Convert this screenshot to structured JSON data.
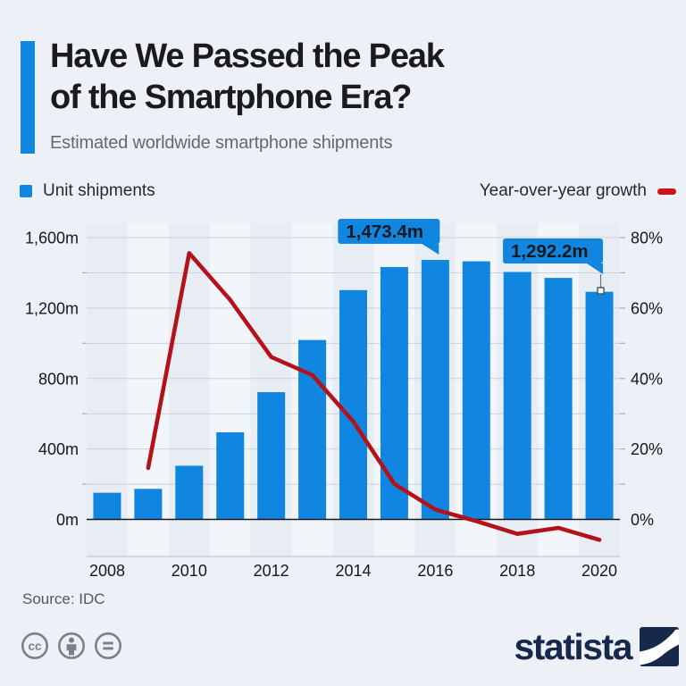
{
  "header": {
    "title_line1": "Have We Passed the Peak",
    "title_line2": "of the Smartphone Era?",
    "subtitle": "Estimated worldwide smartphone shipments"
  },
  "legend": {
    "bars_label": "Unit shipments",
    "line_label": "Year-over-year growth"
  },
  "footer": {
    "source": "Source: IDC",
    "brand": "statista"
  },
  "colors": {
    "accent_blue": "#1186e0",
    "line_red": "#b4121b",
    "dash_red": "#cf1218",
    "brand_navy": "#16294a"
  },
  "chart_data": {
    "type": "bar",
    "title": "Estimated worldwide smartphone shipments",
    "categories": [
      2008,
      2009,
      2010,
      2011,
      2012,
      2013,
      2014,
      2015,
      2016,
      2017,
      2018,
      2019,
      2020
    ],
    "series": [
      {
        "name": "Unit shipments",
        "type": "bar",
        "unit": "million units",
        "values": [
          151.4,
          173.5,
          304.7,
          494.5,
          722.4,
          1018.7,
          1301.7,
          1432.9,
          1473.4,
          1465.5,
          1404.9,
          1371.1,
          1292.2
        ]
      },
      {
        "name": "Year-over-year growth",
        "type": "line",
        "unit": "%",
        "values": [
          null,
          14.6,
          75.6,
          62.3,
          46.1,
          41.0,
          27.8,
          10.1,
          2.8,
          -0.5,
          -4.1,
          -2.4,
          -5.8
        ]
      }
    ],
    "left_axis": {
      "tick_labels": [
        "1,600m",
        "1,200m",
        "800m",
        "400m",
        "0m"
      ],
      "tick_values": [
        1600,
        1200,
        800,
        400,
        0
      ],
      "max": 1600,
      "gridline_step": 200
    },
    "right_axis": {
      "tick_labels": [
        "80%",
        "60%",
        "40%",
        "20%",
        "0%"
      ],
      "tick_values": [
        80,
        60,
        40,
        20,
        0
      ],
      "max": 80,
      "tick_step": 10
    },
    "x_tick_labels": [
      "2008",
      "2010",
      "2012",
      "2014",
      "2016",
      "2018",
      "2020"
    ],
    "x_tick_years": [
      2008,
      2010,
      2012,
      2014,
      2016,
      2018,
      2020
    ],
    "annotations": [
      {
        "label": "1,473.4m",
        "year": 2016
      },
      {
        "label": "1,292.2m",
        "year": 2020
      }
    ],
    "grid": true,
    "legend_position": "top"
  }
}
